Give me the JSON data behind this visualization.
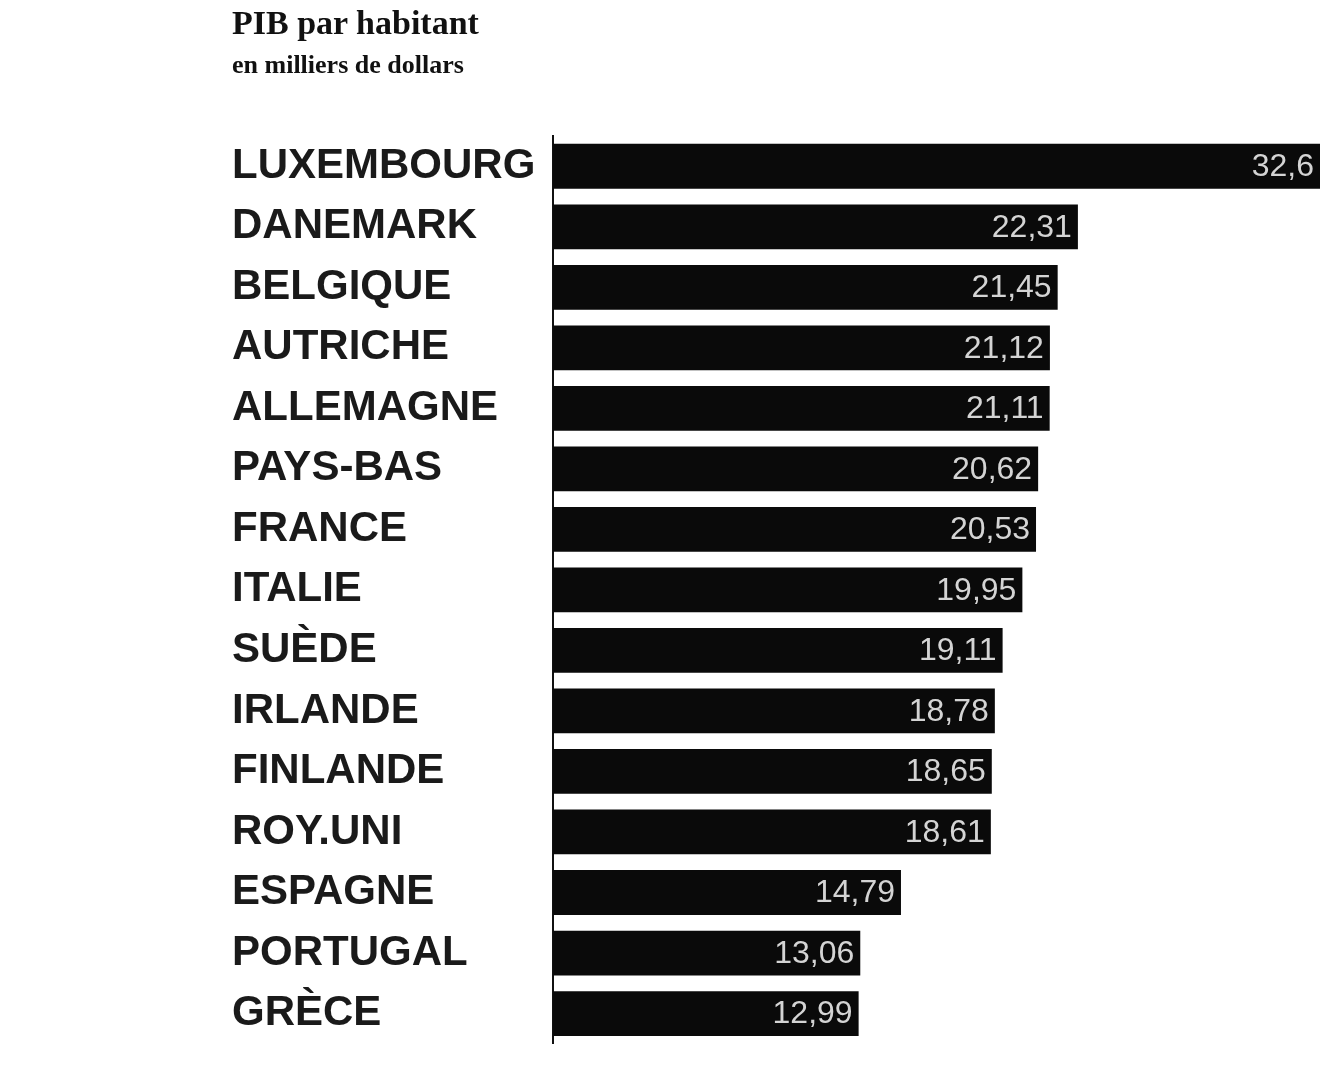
{
  "chart_data": {
    "type": "bar",
    "orientation": "horizontal",
    "title": "PIB par habitant",
    "subtitle": "en milliers de dollars",
    "categories": [
      "LUXEMBOURG",
      "DANEMARK",
      "BELGIQUE",
      "AUTRICHE",
      "ALLEMAGNE",
      "PAYS-BAS",
      "FRANCE",
      "ITALIE",
      "SUÈDE",
      "IRLANDE",
      "FINLANDE",
      "ROY.UNI",
      "ESPAGNE",
      "PORTUGAL",
      "GRÈCE"
    ],
    "values": [
      32.6,
      22.31,
      21.45,
      21.12,
      21.11,
      20.62,
      20.53,
      19.95,
      19.11,
      18.78,
      18.65,
      18.61,
      14.79,
      13.06,
      12.99
    ],
    "value_labels": [
      "32,6",
      "22,31",
      "21,45",
      "21,12",
      "21,11",
      "20,62",
      "20,53",
      "19,95",
      "19,11",
      "18,78",
      "18,65",
      "18,61",
      "14,79",
      "13,06",
      "12,99"
    ],
    "color": "#0a0a0a"
  }
}
